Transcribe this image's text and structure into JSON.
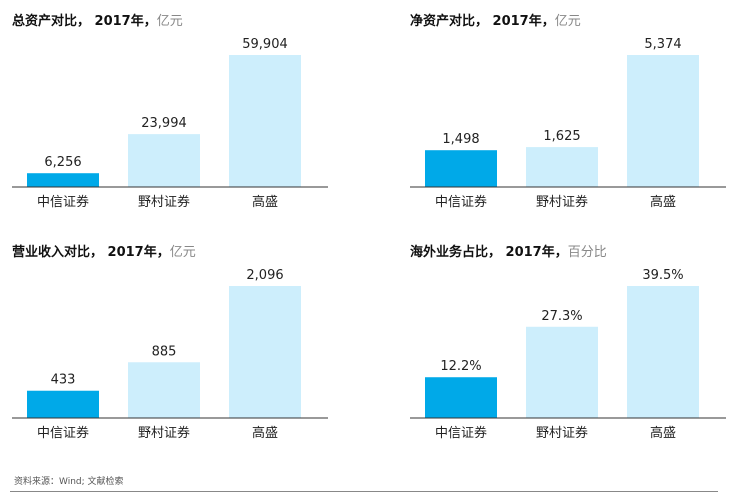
{
  "colors": {
    "highlight": "#00a9e8",
    "base": "#cdeefc",
    "axis": "#333333",
    "text": "#222222"
  },
  "chart_data": [
    {
      "type": "bar",
      "title": "总资产对比， 2017年，",
      "unit": "亿元",
      "categories": [
        "中信证券",
        "野村证券",
        "高盛"
      ],
      "values": [
        6256,
        23994,
        59904
      ],
      "labels": [
        "6,256",
        "23,994",
        "59,904"
      ],
      "highlight_index": 0
    },
    {
      "type": "bar",
      "title": "净资产对比， 2017年，",
      "unit": "亿元",
      "categories": [
        "中信证券",
        "野村证券",
        "高盛"
      ],
      "values": [
        1498,
        1625,
        5374
      ],
      "labels": [
        "1,498",
        "1,625",
        "5,374"
      ],
      "highlight_index": 0
    },
    {
      "type": "bar",
      "title": "营业收入对比， 2017年，",
      "unit": "亿元",
      "categories": [
        "中信证券",
        "野村证券",
        "高盛"
      ],
      "values": [
        433,
        885,
        2096
      ],
      "labels": [
        "433",
        "885",
        "2,096"
      ],
      "highlight_index": 0
    },
    {
      "type": "bar",
      "title": "海外业务占比， 2017年，",
      "unit": "百分比",
      "categories": [
        "中信证券",
        "野村证券",
        "高盛"
      ],
      "values": [
        12.2,
        27.3,
        39.5
      ],
      "labels": [
        "12.2%",
        "27.3%",
        "39.5%"
      ],
      "highlight_index": 0
    }
  ],
  "footer": {
    "source": "资料来源：Wind; 文献检索"
  }
}
